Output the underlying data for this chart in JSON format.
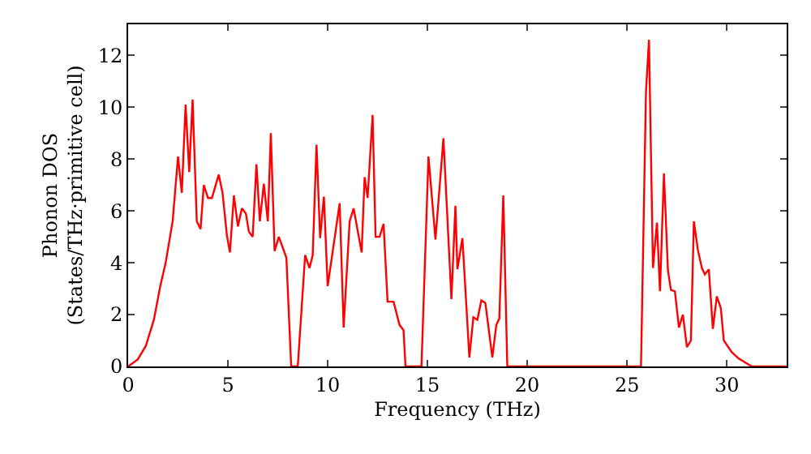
{
  "chart_data": {
    "type": "line",
    "xlabel": "Frequency (THz)",
    "ylabel": "Phonon DOS\n(States/THz·primitive cell)",
    "xlim": [
      0,
      33
    ],
    "ylim": [
      0,
      13.2
    ],
    "xticks": [
      0,
      5,
      10,
      15,
      20,
      25,
      30
    ],
    "yticks": [
      0,
      2,
      4,
      6,
      8,
      10,
      12
    ],
    "legend": false,
    "series": [
      {
        "color": "#ff0000",
        "x": [
          0,
          0.48,
          0.89,
          1.29,
          1.61,
          1.88,
          2.23,
          2.5,
          2.69,
          2.88,
          3.06,
          3.23,
          3.44,
          3.63,
          3.79,
          4.0,
          4.2,
          4.54,
          4.73,
          4.95,
          5.1,
          5.3,
          5.5,
          5.7,
          5.9,
          6.05,
          6.24,
          6.43,
          6.6,
          6.8,
          7.0,
          7.15,
          7.34,
          7.55,
          7.93,
          8.17,
          8.5,
          8.87,
          9.09,
          9.25,
          9.44,
          9.62,
          9.81,
          10.0,
          10.6,
          10.8,
          11.1,
          11.3,
          11.7,
          11.85,
          12.0,
          12.25,
          12.4,
          12.6,
          12.8,
          13.0,
          13.3,
          13.6,
          13.8,
          13.9,
          14.7,
          15.05,
          15.4,
          15.8,
          16.2,
          16.4,
          16.5,
          16.75,
          17.1,
          17.3,
          17.5,
          17.7,
          17.9,
          18.25,
          18.45,
          18.6,
          18.8,
          19.0,
          25.7,
          25.95,
          26.1,
          26.3,
          26.5,
          26.65,
          26.85,
          27.05,
          27.2,
          27.4,
          27.6,
          27.8,
          28.0,
          28.2,
          28.35,
          28.55,
          28.75,
          28.9,
          29.1,
          29.3,
          29.5,
          29.7,
          29.85,
          30.25,
          30.6,
          31.25,
          33
        ],
        "values": [
          0,
          0.27,
          0.8,
          1.8,
          3.1,
          4.0,
          5.6,
          8.1,
          6.7,
          10.1,
          7.5,
          10.3,
          5.6,
          5.3,
          7.0,
          6.5,
          6.5,
          7.4,
          6.7,
          5.05,
          4.4,
          6.6,
          5.4,
          6.1,
          5.9,
          5.2,
          5.0,
          7.8,
          5.6,
          7.05,
          5.6,
          9.0,
          4.45,
          5.0,
          4.2,
          0,
          0,
          4.3,
          3.8,
          4.3,
          8.55,
          4.95,
          6.55,
          3.1,
          6.3,
          1.5,
          5.6,
          6.1,
          4.4,
          7.3,
          6.5,
          9.7,
          5.0,
          5.0,
          5.5,
          2.5,
          2.5,
          1.6,
          1.4,
          0,
          0,
          8.1,
          4.9,
          8.8,
          2.6,
          6.2,
          3.75,
          4.95,
          0.35,
          1.9,
          1.8,
          2.55,
          2.45,
          0.35,
          1.6,
          1.85,
          6.6,
          0,
          0,
          10.6,
          12.6,
          3.8,
          5.55,
          2.9,
          7.45,
          3.7,
          2.95,
          2.9,
          1.5,
          2.0,
          0.75,
          1.0,
          5.6,
          4.5,
          3.8,
          3.55,
          3.75,
          1.45,
          2.7,
          2.25,
          1.0,
          0.55,
          0.3,
          0,
          0
        ]
      }
    ]
  }
}
